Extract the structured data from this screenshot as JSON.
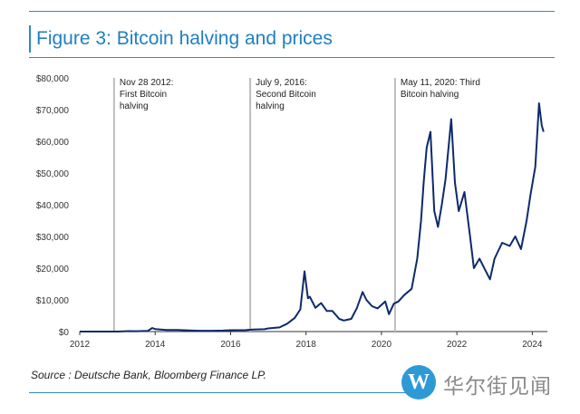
{
  "title": "Figure 3: Bitcoin halving and prices",
  "source": "Source : Deutsche Bank, Bloomberg Finance LP.",
  "watermark": {
    "logo_text": "W",
    "text": "华尔街见闻",
    "logo_color": "#2d9ad6"
  },
  "chart_data": {
    "type": "line",
    "title": "Bitcoin halving and prices",
    "xlabel": "",
    "ylabel": "",
    "xlim": [
      2012,
      2024.4
    ],
    "ylim": [
      0,
      80000
    ],
    "x_ticks": [
      2012,
      2014,
      2016,
      2018,
      2020,
      2022,
      2024
    ],
    "x_tick_labels": [
      "2012",
      "2014",
      "2016",
      "2018",
      "2020",
      "2022",
      "2024"
    ],
    "y_ticks": [
      0,
      10000,
      20000,
      30000,
      40000,
      50000,
      60000,
      70000,
      80000
    ],
    "y_tick_labels": [
      "$0",
      "$10,000",
      "$20,000",
      "$30,000",
      "$40,000",
      "$50,000",
      "$60,000",
      "$70,000",
      "$80,000"
    ],
    "grid": false,
    "line_color": "#0d2a6b",
    "halvings": [
      {
        "x": 2012.91,
        "label_lines": [
          "Nov 28 2012:",
          "First Bitcoin",
          "halving"
        ]
      },
      {
        "x": 2016.52,
        "label_lines": [
          "July 9, 2016:",
          "Second Bitcoin",
          "halving"
        ]
      },
      {
        "x": 2020.36,
        "label_lines": [
          "May 11, 2020: Third",
          "Bitcoin halving"
        ]
      }
    ],
    "series": [
      {
        "values": [
          [
            2012.0,
            7
          ],
          [
            2013.0,
            13
          ],
          [
            2013.3,
            150
          ],
          [
            2013.5,
            100
          ],
          [
            2013.8,
            200
          ],
          [
            2013.92,
            1100
          ],
          [
            2014.0,
            800
          ],
          [
            2014.3,
            500
          ],
          [
            2014.6,
            500
          ],
          [
            2014.9,
            350
          ],
          [
            2015.2,
            250
          ],
          [
            2015.5,
            250
          ],
          [
            2015.8,
            300
          ],
          [
            2016.0,
            420
          ],
          [
            2016.4,
            450
          ],
          [
            2016.6,
            650
          ],
          [
            2016.9,
            750
          ],
          [
            2017.0,
            1000
          ],
          [
            2017.3,
            1300
          ],
          [
            2017.5,
            2500
          ],
          [
            2017.7,
            4300
          ],
          [
            2017.85,
            7000
          ],
          [
            2017.96,
            19000
          ],
          [
            2018.05,
            10500
          ],
          [
            2018.1,
            11000
          ],
          [
            2018.25,
            7500
          ],
          [
            2018.4,
            9000
          ],
          [
            2018.55,
            6500
          ],
          [
            2018.7,
            6500
          ],
          [
            2018.88,
            4000
          ],
          [
            2019.0,
            3500
          ],
          [
            2019.2,
            4000
          ],
          [
            2019.35,
            7500
          ],
          [
            2019.5,
            12500
          ],
          [
            2019.6,
            10000
          ],
          [
            2019.75,
            8000
          ],
          [
            2019.9,
            7300
          ],
          [
            2020.1,
            9500
          ],
          [
            2020.2,
            5500
          ],
          [
            2020.33,
            8800
          ],
          [
            2020.45,
            9500
          ],
          [
            2020.6,
            11500
          ],
          [
            2020.8,
            13500
          ],
          [
            2020.95,
            23000
          ],
          [
            2021.05,
            35000
          ],
          [
            2021.12,
            47000
          ],
          [
            2021.2,
            58000
          ],
          [
            2021.3,
            63000
          ],
          [
            2021.4,
            38000
          ],
          [
            2021.5,
            33000
          ],
          [
            2021.6,
            40000
          ],
          [
            2021.7,
            48000
          ],
          [
            2021.85,
            67000
          ],
          [
            2021.95,
            47000
          ],
          [
            2022.05,
            38000
          ],
          [
            2022.2,
            44000
          ],
          [
            2022.35,
            30000
          ],
          [
            2022.45,
            20000
          ],
          [
            2022.6,
            23000
          ],
          [
            2022.75,
            19500
          ],
          [
            2022.88,
            16500
          ],
          [
            2023.0,
            23000
          ],
          [
            2023.2,
            28000
          ],
          [
            2023.4,
            27000
          ],
          [
            2023.55,
            30000
          ],
          [
            2023.7,
            26000
          ],
          [
            2023.85,
            35000
          ],
          [
            2023.95,
            43000
          ],
          [
            2024.08,
            52000
          ],
          [
            2024.18,
            72000
          ],
          [
            2024.25,
            65000
          ],
          [
            2024.3,
            63000
          ]
        ]
      }
    ]
  }
}
